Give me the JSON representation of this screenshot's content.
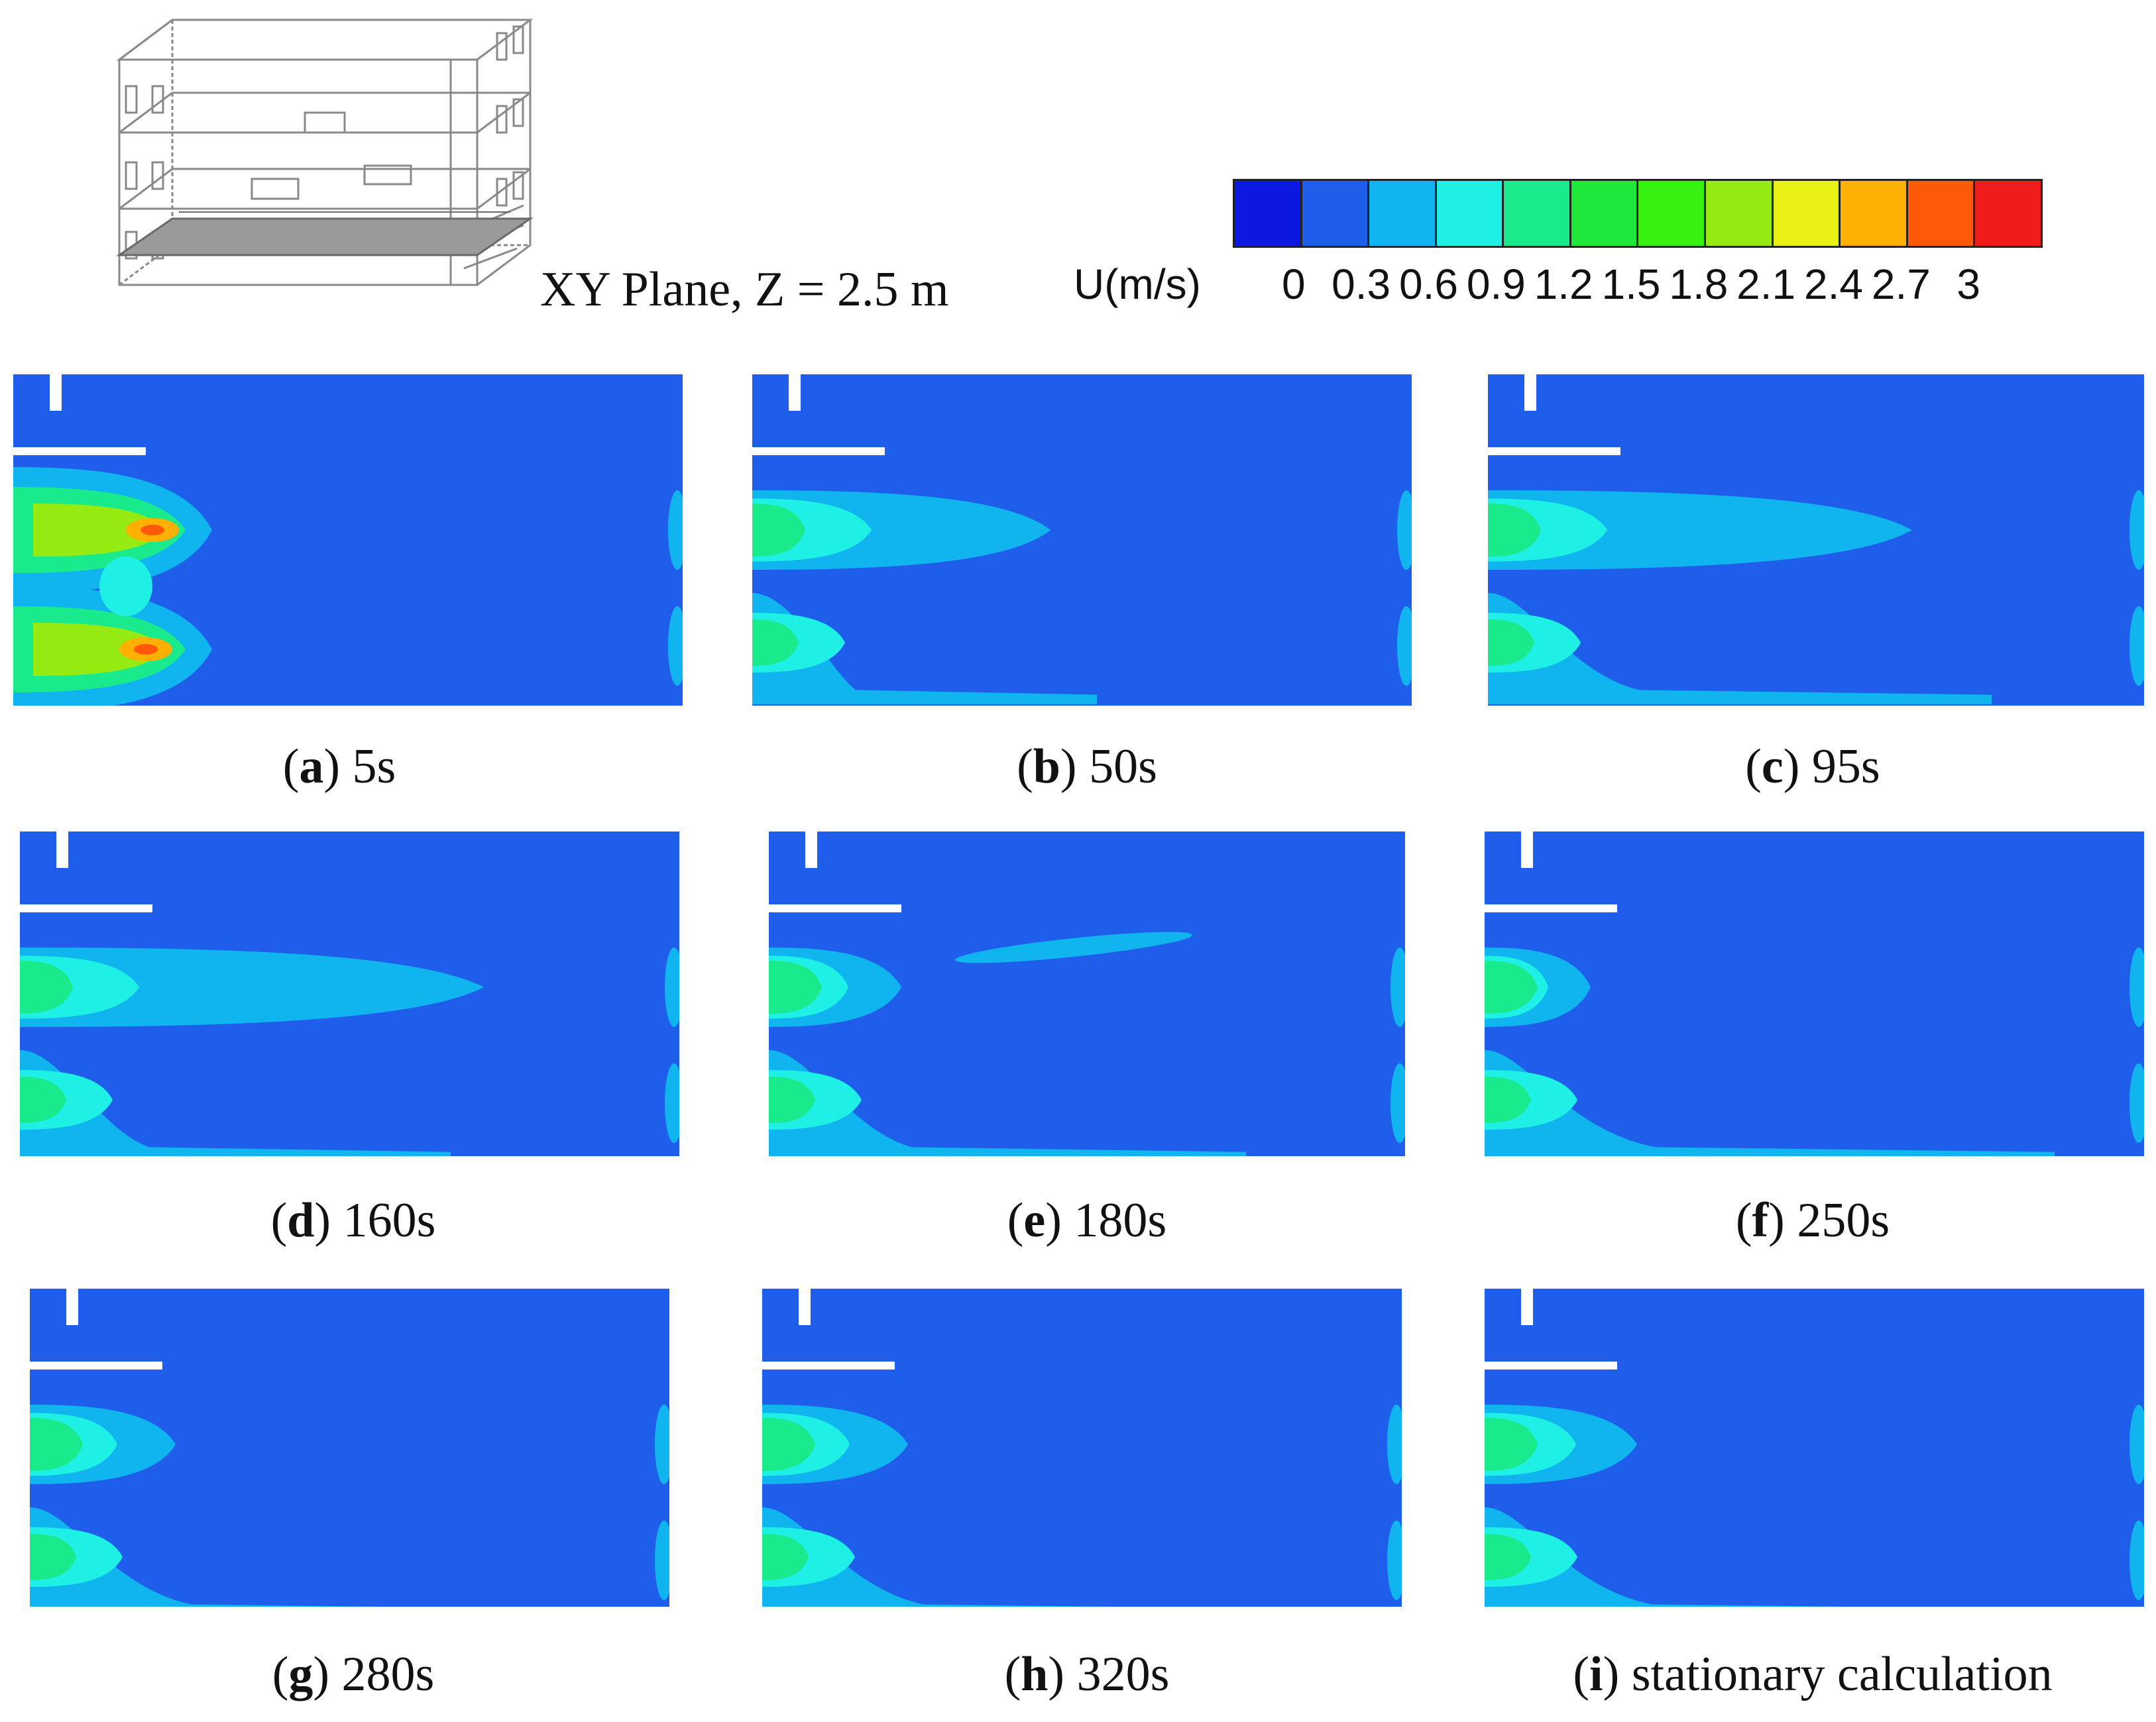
{
  "header": {
    "plane_label": "XY Plane, Z = 2.5 m",
    "legend_title": "U(m/s)",
    "legend_ticks": [
      "0",
      "0.3",
      "0.6",
      "0.9",
      "1.2",
      "1.5",
      "1.8",
      "2.1",
      "2.4",
      "2.7",
      "3"
    ],
    "legend_colors": [
      "#0a18e0",
      "#1f5eea",
      "#10b4ee",
      "#1ff0e6",
      "#19ea8c",
      "#1ee83a",
      "#36f010",
      "#96ec12",
      "#e8f212",
      "#ffb000",
      "#ff5a0a",
      "#f01c1c"
    ]
  },
  "panels": [
    {
      "letter": "a",
      "time": "5s",
      "level": 4
    },
    {
      "letter": "b",
      "time": "50s",
      "level": 3
    },
    {
      "letter": "c",
      "time": "95s",
      "level": 3
    },
    {
      "letter": "d",
      "time": "160s",
      "level": 3
    },
    {
      "letter": "e",
      "time": "180s",
      "level": 3
    },
    {
      "letter": "f",
      "time": "250s",
      "level": 3
    },
    {
      "letter": "g",
      "time": "280s",
      "level": 3
    },
    {
      "letter": "h",
      "time": "320s",
      "level": 3
    },
    {
      "letter": "i",
      "time": "stationary calculation",
      "level": 3
    }
  ],
  "contour_colors": {
    "background": "#1f5eea",
    "wall": "#ffffff",
    "level_1": "#10b4ee",
    "level_2": "#1ff0e6",
    "level_3": "#19ea8c",
    "level_4": "#36f010",
    "level_5": "#96ec12",
    "level_6": "#ffb000",
    "level_7": "#ff5a0a"
  }
}
